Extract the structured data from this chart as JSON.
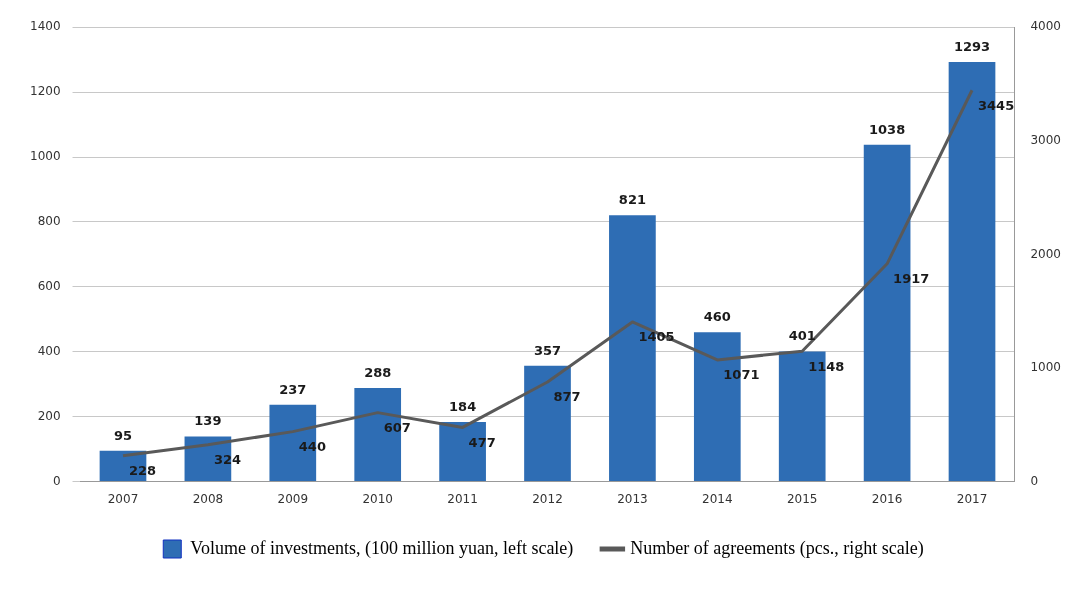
{
  "chart_data": {
    "type": "bar",
    "categories": [
      "2007",
      "2008",
      "2009",
      "2010",
      "2011",
      "2012",
      "2013",
      "2014",
      "2015",
      "2016",
      "2017"
    ],
    "series": [
      {
        "name": "Volume of investments, (100 million yuan, left scale)",
        "color": "#2e6db4",
        "values": [
          95,
          139,
          237,
          288,
          184,
          357,
          821,
          460,
          401,
          1038,
          1293
        ]
      },
      {
        "name": "Number of agreements (pcs., right scale)",
        "type": "line",
        "axis": "y2",
        "color": "#595959",
        "values": [
          228,
          324,
          440,
          607,
          477,
          877,
          1405,
          1071,
          1148,
          1917,
          3445
        ]
      }
    ],
    "ylim": [
      0,
      1400
    ],
    "yticks": [
      0,
      200,
      400,
      600,
      800,
      1000,
      1200,
      1400
    ],
    "y2lim": [
      0,
      4000
    ],
    "y2ticks": [
      0,
      1000,
      2000,
      3000,
      4000
    ],
    "grid": "y",
    "data_labels": true,
    "legend": "bottom",
    "marker": "none"
  }
}
